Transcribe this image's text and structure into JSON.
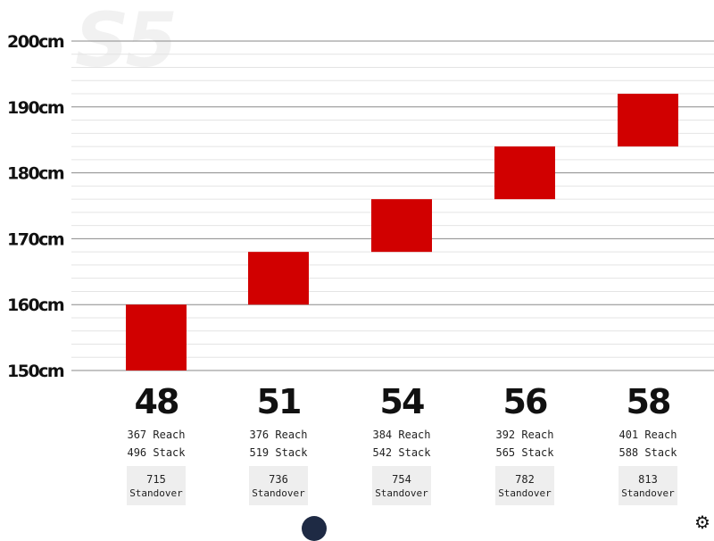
{
  "watermark": "S5",
  "chart_data": {
    "type": "bar",
    "ylim": [
      150,
      200
    ],
    "yticks": [
      "150cm",
      "160cm",
      "170cm",
      "180cm",
      "190cm",
      "200cm"
    ],
    "ytick_values": [
      150,
      160,
      170,
      180,
      190,
      200
    ],
    "series": [
      {
        "size": "48",
        "height_range": [
          150,
          160
        ],
        "reach": "367 Reach",
        "stack": "496 Stack",
        "standover": "715",
        "standover_label": "Standover"
      },
      {
        "size": "51",
        "height_range": [
          160,
          168
        ],
        "reach": "376 Reach",
        "stack": "519 Stack",
        "standover": "736",
        "standover_label": "Standover"
      },
      {
        "size": "54",
        "height_range": [
          168,
          176
        ],
        "reach": "384 Reach",
        "stack": "542 Stack",
        "standover": "754",
        "standover_label": "Standover"
      },
      {
        "size": "56",
        "height_range": [
          176,
          184
        ],
        "reach": "392 Reach",
        "stack": "565 Stack",
        "standover": "782",
        "standover_label": "Standover"
      },
      {
        "size": "58",
        "height_range": [
          184,
          192
        ],
        "reach": "401 Reach",
        "stack": "588 Stack",
        "standover": "813",
        "standover_label": "Standover"
      }
    ],
    "colors": {
      "bar": "#d10000",
      "major_grid": "#8a8a8a",
      "minor_grid": "#e4e4e4",
      "standover_box": "#eeeeee"
    },
    "grid": true
  }
}
